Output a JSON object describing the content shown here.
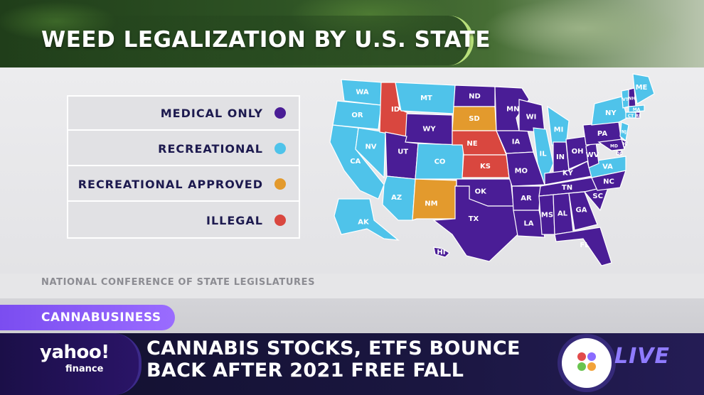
{
  "header": {
    "title": "WEED LEGALIZATION BY U.S. STATE"
  },
  "legend": [
    {
      "label": "MEDICAL ONLY",
      "color": "#4a1d96"
    },
    {
      "label": "RECREATIONAL",
      "color": "#4fc3ea"
    },
    {
      "label": "RECREATIONAL APPROVED",
      "color": "#e39a2d"
    },
    {
      "label": "ILLEGAL",
      "color": "#d9473f"
    }
  ],
  "map": {
    "states": {
      "WA": "RECREATIONAL",
      "OR": "RECREATIONAL",
      "CA": "RECREATIONAL",
      "NV": "RECREATIONAL",
      "AK": "RECREATIONAL",
      "MT": "RECREATIONAL",
      "AZ": "RECREATIONAL",
      "CO": "RECREATIONAL",
      "IL": "RECREATIONAL",
      "MI": "RECREATIONAL",
      "VA": "RECREATIONAL",
      "NY": "RECREATIONAL",
      "VT": "RECREATIONAL",
      "ME": "RECREATIONAL",
      "MA": "RECREATIONAL",
      "CT": "RECREATIONAL",
      "NJ": "RECREATIONAL",
      "SD": "RECREATIONAL APPROVED",
      "NM": "RECREATIONAL APPROVED",
      "ID": "ILLEGAL",
      "NE": "ILLEGAL",
      "KS": "ILLEGAL",
      "ND": "MEDICAL ONLY",
      "MN": "MEDICAL ONLY",
      "WI": "MEDICAL ONLY",
      "WY": "MEDICAL ONLY",
      "UT": "MEDICAL ONLY",
      "IA": "MEDICAL ONLY",
      "MO": "MEDICAL ONLY",
      "OK": "MEDICAL ONLY",
      "TX": "MEDICAL ONLY",
      "AR": "MEDICAL ONLY",
      "LA": "MEDICAL ONLY",
      "MS": "MEDICAL ONLY",
      "AL": "MEDICAL ONLY",
      "GA": "MEDICAL ONLY",
      "FL": "MEDICAL ONLY",
      "TN": "MEDICAL ONLY",
      "KY": "MEDICAL ONLY",
      "IN": "MEDICAL ONLY",
      "OH": "MEDICAL ONLY",
      "WV": "MEDICAL ONLY",
      "NC": "MEDICAL ONLY",
      "SC": "MEDICAL ONLY",
      "PA": "MEDICAL ONLY",
      "NH": "MEDICAL ONLY",
      "RI": "MEDICAL ONLY",
      "DE": "MEDICAL ONLY",
      "MD": "MEDICAL ONLY",
      "DC": "MEDICAL ONLY",
      "HI": "MEDICAL ONLY"
    }
  },
  "source": "NATIONAL CONFERENCE OF STATE LEGISLATURES",
  "lower_third": {
    "category": "CANNABUSINESS",
    "headline_line1": "CANNABIS STOCKS, ETFS BOUNCE",
    "headline_line2": "BACK AFTER 2021 FREE FALL",
    "logo_main": "yahoo!",
    "logo_sub": "finance",
    "live": "LIVE"
  }
}
